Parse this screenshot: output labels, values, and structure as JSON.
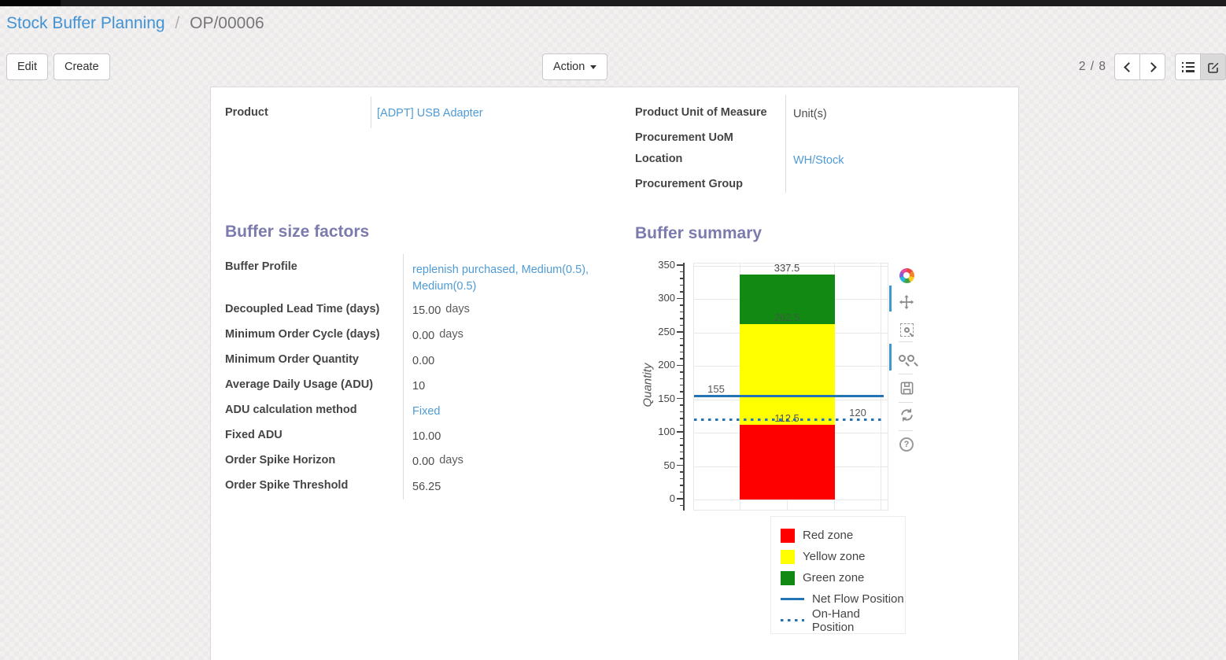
{
  "breadcrumb": {
    "parent": "Stock Buffer Planning",
    "separator": "/",
    "current": "OP/00006"
  },
  "toolbar": {
    "edit_label": "Edit",
    "create_label": "Create",
    "action_label": "Action",
    "pager": "2 / 8"
  },
  "view_switcher": {
    "buttons": [
      "list-view",
      "form-view"
    ],
    "active": "form-view"
  },
  "form": {
    "left_fields": [
      {
        "label": "Product",
        "value": "[ADPT] USB Adapter",
        "link": true
      }
    ],
    "right_fields": [
      {
        "label": "Product Unit of Measure",
        "value": "Unit(s)",
        "link": false
      },
      {
        "label": "Procurement UoM",
        "value": "",
        "link": false
      },
      {
        "label": "Location",
        "value": "WH/Stock",
        "link": true
      },
      {
        "label": "Procurement Group",
        "value": "",
        "link": false
      }
    ]
  },
  "sections": {
    "buffer_factors": {
      "title": "Buffer size factors",
      "fields": [
        {
          "label": "Buffer Profile",
          "value": "replenish purchased, Medium(0.5), Medium(0.5)",
          "suffix": "",
          "link": true
        },
        {
          "label": "Decoupled Lead Time (days)",
          "value": "15.00",
          "suffix": "days",
          "link": false
        },
        {
          "label": "Minimum Order Cycle (days)",
          "value": "0.00",
          "suffix": "days",
          "link": false
        },
        {
          "label": "Minimum Order Quantity",
          "value": "0.00",
          "suffix": "",
          "link": false
        },
        {
          "label": "Average Daily Usage (ADU)",
          "value": "10",
          "suffix": "",
          "link": false
        },
        {
          "label": "ADU calculation method",
          "value": "Fixed",
          "suffix": "",
          "link": true
        },
        {
          "label": "Fixed ADU",
          "value": "10.00",
          "suffix": "",
          "link": false
        },
        {
          "label": "Order Spike Horizon",
          "value": "0.00",
          "suffix": "days",
          "link": false
        },
        {
          "label": "Order Spike Threshold",
          "value": "56.25",
          "suffix": "",
          "link": false
        }
      ]
    },
    "buffer_summary": {
      "title": "Buffer summary"
    }
  },
  "chart_data": {
    "type": "bar",
    "title": "Buffer summary",
    "xlabel": "",
    "ylabel": "Quantity",
    "ylim": [
      0,
      350
    ],
    "ytick_step": 50,
    "ytick_minor_step": 10,
    "grid": true,
    "legend_position": "below-right",
    "zones": [
      {
        "name": "Red zone",
        "from": 0,
        "to": 112.5,
        "color": "#ff0000"
      },
      {
        "name": "Yellow zone",
        "from": 112.5,
        "to": 262.5,
        "color": "#ffff00"
      },
      {
        "name": "Green zone",
        "from": 262.5,
        "to": 337.5,
        "color": "#128912"
      }
    ],
    "lines": [
      {
        "name": "Net Flow Position",
        "value": 155,
        "style": "solid",
        "color": "#2474b5"
      },
      {
        "name": "On-Hand Position",
        "value": 120,
        "style": "dotted",
        "color": "#2474b5"
      }
    ],
    "annotations": [
      {
        "text": "337.5",
        "value": 337.5,
        "align": "bar",
        "color": "#444444"
      },
      {
        "text": "262.5",
        "value": 262.5,
        "align": "bar",
        "color": "#3c603c"
      },
      {
        "text": "112.5",
        "value": 112.5,
        "align": "bar",
        "color": "#555555"
      },
      {
        "text": "155",
        "value": 155,
        "align": "left",
        "color": "#555555"
      },
      {
        "text": "120",
        "value": 120,
        "align": "right",
        "color": "#555555"
      }
    ],
    "legend": [
      {
        "label": "Red zone",
        "swatch": "red-square"
      },
      {
        "label": "Yellow zone",
        "swatch": "yellow-square"
      },
      {
        "label": "Green zone",
        "swatch": "green-square"
      },
      {
        "label": "Net Flow Position",
        "swatch": "solid-line"
      },
      {
        "label": "On-Hand Position",
        "swatch": "dotted-line"
      }
    ]
  },
  "modebar": {
    "icons": [
      "plotly-logo",
      "pan",
      "zoom-box",
      "zoom-in-out",
      "save",
      "reset",
      "help"
    ]
  }
}
